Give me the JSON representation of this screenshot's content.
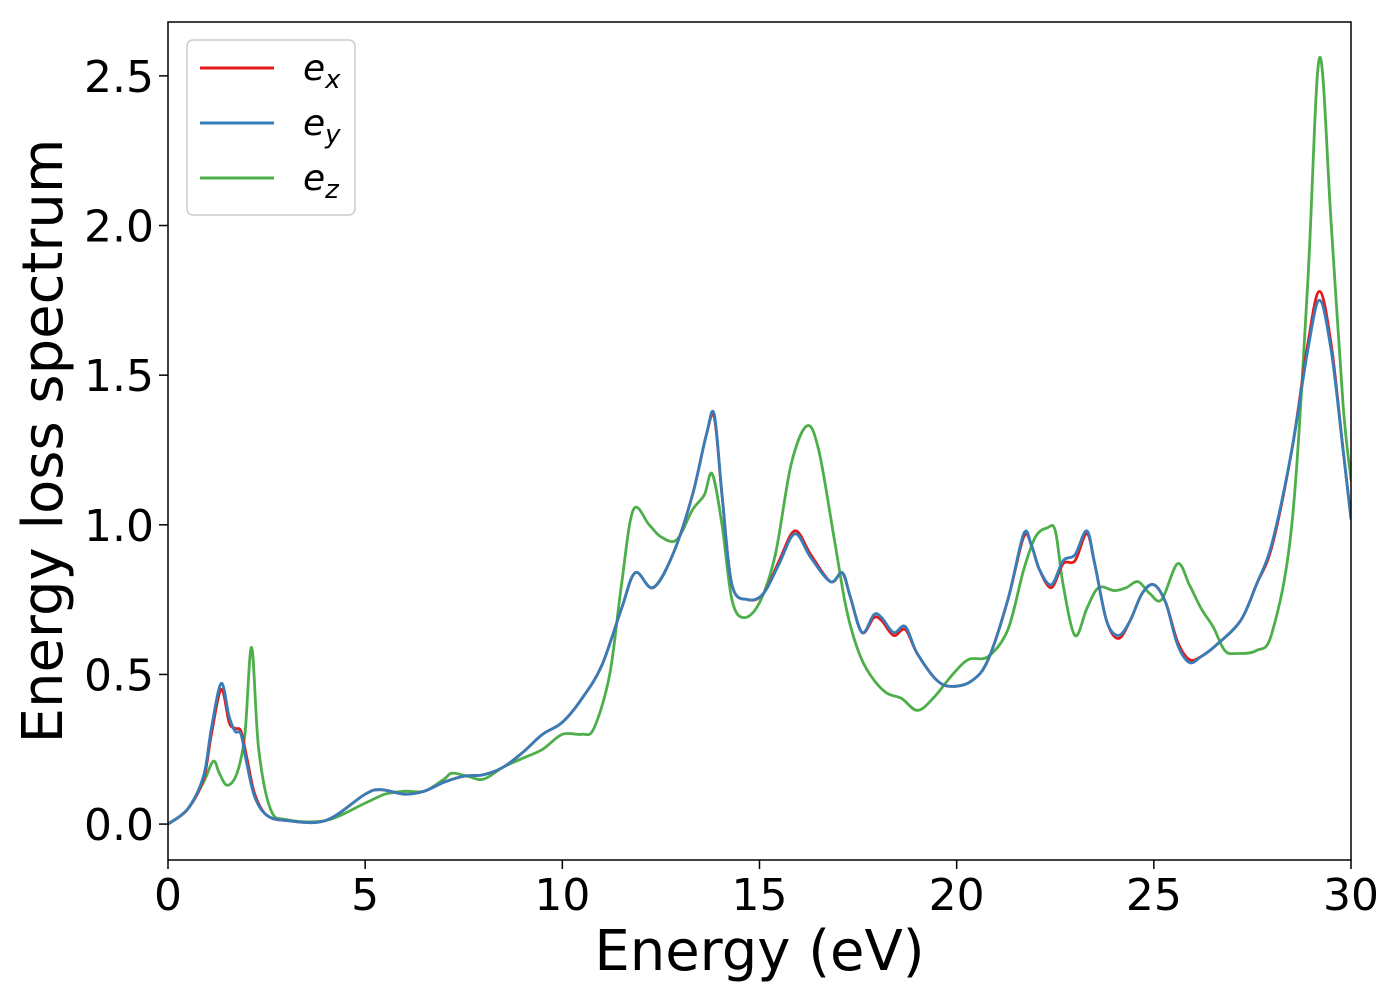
{
  "chart_data": {
    "type": "line",
    "title": "",
    "xlabel": "Energy (eV)",
    "ylabel": "Energy loss spectrum",
    "xlim": [
      0,
      30
    ],
    "ylim": [
      -0.12,
      2.68
    ],
    "xticks": [
      0,
      5,
      10,
      15,
      20,
      25,
      30
    ],
    "yticks": [
      0.0,
      0.5,
      1.0,
      1.5,
      2.0,
      2.5
    ],
    "xtick_labels": [
      "0",
      "5",
      "10",
      "15",
      "20",
      "25",
      "30"
    ],
    "ytick_labels": [
      "0.0",
      "0.5",
      "1.0",
      "1.5",
      "2.0",
      "2.5"
    ],
    "grid": false,
    "legend_position": "top-left",
    "series": [
      {
        "name": "e_x",
        "legend_base": "e",
        "legend_sub": "x",
        "color": "#e41a1c",
        "points": [
          [
            0,
            0.0
          ],
          [
            0.5,
            0.05
          ],
          [
            0.9,
            0.15
          ],
          [
            1.1,
            0.3
          ],
          [
            1.35,
            0.45
          ],
          [
            1.55,
            0.34
          ],
          [
            1.7,
            0.32
          ],
          [
            1.85,
            0.31
          ],
          [
            2.0,
            0.22
          ],
          [
            2.2,
            0.1
          ],
          [
            2.5,
            0.03
          ],
          [
            3.0,
            0.012
          ],
          [
            4.0,
            0.012
          ],
          [
            5.0,
            0.1
          ],
          [
            5.4,
            0.115
          ],
          [
            6.0,
            0.1
          ],
          [
            6.5,
            0.11
          ],
          [
            7.0,
            0.14
          ],
          [
            7.5,
            0.16
          ],
          [
            8.0,
            0.165
          ],
          [
            8.5,
            0.19
          ],
          [
            9.0,
            0.24
          ],
          [
            9.5,
            0.3
          ],
          [
            10.0,
            0.34
          ],
          [
            10.5,
            0.42
          ],
          [
            11.0,
            0.53
          ],
          [
            11.5,
            0.72
          ],
          [
            11.85,
            0.84
          ],
          [
            12.3,
            0.79
          ],
          [
            12.8,
            0.9
          ],
          [
            13.3,
            1.1
          ],
          [
            13.65,
            1.3
          ],
          [
            13.85,
            1.36
          ],
          [
            14.05,
            1.1
          ],
          [
            14.3,
            0.8
          ],
          [
            14.7,
            0.75
          ],
          [
            15.1,
            0.77
          ],
          [
            15.5,
            0.88
          ],
          [
            15.9,
            0.98
          ],
          [
            16.3,
            0.9
          ],
          [
            16.8,
            0.81
          ],
          [
            17.1,
            0.84
          ],
          [
            17.3,
            0.76
          ],
          [
            17.6,
            0.64
          ],
          [
            17.9,
            0.69
          ],
          [
            18.1,
            0.68
          ],
          [
            18.4,
            0.63
          ],
          [
            18.7,
            0.65
          ],
          [
            19.0,
            0.57
          ],
          [
            19.5,
            0.48
          ],
          [
            19.9,
            0.46
          ],
          [
            20.4,
            0.48
          ],
          [
            20.8,
            0.55
          ],
          [
            21.3,
            0.75
          ],
          [
            21.7,
            0.96
          ],
          [
            21.9,
            0.93
          ],
          [
            22.1,
            0.85
          ],
          [
            22.4,
            0.79
          ],
          [
            22.7,
            0.87
          ],
          [
            23.0,
            0.88
          ],
          [
            23.3,
            0.97
          ],
          [
            23.5,
            0.87
          ],
          [
            23.8,
            0.68
          ],
          [
            24.1,
            0.62
          ],
          [
            24.4,
            0.68
          ],
          [
            24.7,
            0.77
          ],
          [
            25.0,
            0.8
          ],
          [
            25.3,
            0.74
          ],
          [
            25.6,
            0.61
          ],
          [
            25.9,
            0.55
          ],
          [
            26.2,
            0.56
          ],
          [
            26.6,
            0.6
          ],
          [
            27.2,
            0.68
          ],
          [
            27.6,
            0.8
          ],
          [
            28.0,
            0.93
          ],
          [
            28.5,
            1.25
          ],
          [
            28.9,
            1.6
          ],
          [
            29.2,
            1.78
          ],
          [
            29.5,
            1.6
          ],
          [
            29.8,
            1.25
          ],
          [
            30.0,
            1.02
          ]
        ]
      },
      {
        "name": "e_y",
        "legend_base": "e",
        "legend_sub": "y",
        "color": "#377eb8",
        "points": [
          [
            0,
            0.0
          ],
          [
            0.5,
            0.05
          ],
          [
            0.9,
            0.16
          ],
          [
            1.1,
            0.32
          ],
          [
            1.35,
            0.47
          ],
          [
            1.55,
            0.36
          ],
          [
            1.7,
            0.31
          ],
          [
            1.85,
            0.3
          ],
          [
            2.0,
            0.2
          ],
          [
            2.2,
            0.09
          ],
          [
            2.5,
            0.03
          ],
          [
            3.0,
            0.012
          ],
          [
            4.0,
            0.012
          ],
          [
            5.0,
            0.1
          ],
          [
            5.4,
            0.115
          ],
          [
            6.0,
            0.1
          ],
          [
            6.5,
            0.11
          ],
          [
            7.0,
            0.14
          ],
          [
            7.5,
            0.16
          ],
          [
            8.0,
            0.165
          ],
          [
            8.5,
            0.19
          ],
          [
            9.0,
            0.24
          ],
          [
            9.5,
            0.3
          ],
          [
            10.0,
            0.34
          ],
          [
            10.5,
            0.42
          ],
          [
            11.0,
            0.53
          ],
          [
            11.5,
            0.72
          ],
          [
            11.85,
            0.84
          ],
          [
            12.3,
            0.79
          ],
          [
            12.8,
            0.9
          ],
          [
            13.3,
            1.1
          ],
          [
            13.65,
            1.3
          ],
          [
            13.85,
            1.37
          ],
          [
            14.05,
            1.1
          ],
          [
            14.3,
            0.8
          ],
          [
            14.7,
            0.75
          ],
          [
            15.1,
            0.77
          ],
          [
            15.5,
            0.87
          ],
          [
            15.9,
            0.97
          ],
          [
            16.3,
            0.89
          ],
          [
            16.8,
            0.81
          ],
          [
            17.1,
            0.84
          ],
          [
            17.3,
            0.76
          ],
          [
            17.6,
            0.64
          ],
          [
            17.9,
            0.7
          ],
          [
            18.1,
            0.69
          ],
          [
            18.4,
            0.64
          ],
          [
            18.7,
            0.66
          ],
          [
            19.0,
            0.57
          ],
          [
            19.5,
            0.48
          ],
          [
            19.9,
            0.46
          ],
          [
            20.4,
            0.48
          ],
          [
            20.8,
            0.55
          ],
          [
            21.3,
            0.75
          ],
          [
            21.7,
            0.97
          ],
          [
            21.9,
            0.93
          ],
          [
            22.1,
            0.85
          ],
          [
            22.4,
            0.8
          ],
          [
            22.7,
            0.88
          ],
          [
            23.0,
            0.9
          ],
          [
            23.3,
            0.98
          ],
          [
            23.5,
            0.87
          ],
          [
            23.8,
            0.68
          ],
          [
            24.1,
            0.63
          ],
          [
            24.4,
            0.68
          ],
          [
            24.7,
            0.77
          ],
          [
            25.0,
            0.8
          ],
          [
            25.3,
            0.74
          ],
          [
            25.6,
            0.6
          ],
          [
            25.9,
            0.54
          ],
          [
            26.2,
            0.56
          ],
          [
            26.6,
            0.6
          ],
          [
            27.2,
            0.68
          ],
          [
            27.6,
            0.8
          ],
          [
            28.0,
            0.94
          ],
          [
            28.5,
            1.25
          ],
          [
            28.9,
            1.58
          ],
          [
            29.2,
            1.75
          ],
          [
            29.5,
            1.58
          ],
          [
            29.8,
            1.25
          ],
          [
            30.0,
            1.02
          ]
        ]
      },
      {
        "name": "e_z",
        "legend_base": "e",
        "legend_sub": "z",
        "color": "#4daf4a",
        "points": [
          [
            0,
            0.0
          ],
          [
            0.5,
            0.05
          ],
          [
            0.9,
            0.14
          ],
          [
            1.15,
            0.21
          ],
          [
            1.3,
            0.17
          ],
          [
            1.5,
            0.13
          ],
          [
            1.75,
            0.17
          ],
          [
            1.95,
            0.3
          ],
          [
            2.12,
            0.59
          ],
          [
            2.3,
            0.25
          ],
          [
            2.6,
            0.05
          ],
          [
            3.0,
            0.015
          ],
          [
            4.0,
            0.012
          ],
          [
            5.0,
            0.07
          ],
          [
            5.5,
            0.1
          ],
          [
            6.0,
            0.11
          ],
          [
            6.5,
            0.11
          ],
          [
            7.0,
            0.15
          ],
          [
            7.2,
            0.17
          ],
          [
            7.6,
            0.16
          ],
          [
            8.0,
            0.15
          ],
          [
            8.5,
            0.19
          ],
          [
            9.0,
            0.22
          ],
          [
            9.5,
            0.25
          ],
          [
            10.0,
            0.3
          ],
          [
            10.5,
            0.3
          ],
          [
            10.8,
            0.32
          ],
          [
            11.2,
            0.5
          ],
          [
            11.5,
            0.8
          ],
          [
            11.8,
            1.05
          ],
          [
            12.2,
            1.0
          ],
          [
            12.5,
            0.96
          ],
          [
            12.9,
            0.95
          ],
          [
            13.3,
            1.05
          ],
          [
            13.6,
            1.1
          ],
          [
            13.8,
            1.17
          ],
          [
            14.05,
            1.0
          ],
          [
            14.3,
            0.75
          ],
          [
            14.6,
            0.69
          ],
          [
            15.0,
            0.74
          ],
          [
            15.4,
            0.9
          ],
          [
            15.8,
            1.2
          ],
          [
            16.2,
            1.33
          ],
          [
            16.5,
            1.25
          ],
          [
            16.9,
            0.95
          ],
          [
            17.2,
            0.72
          ],
          [
            17.5,
            0.58
          ],
          [
            17.8,
            0.5
          ],
          [
            18.2,
            0.44
          ],
          [
            18.6,
            0.42
          ],
          [
            19.0,
            0.38
          ],
          [
            19.4,
            0.42
          ],
          [
            19.9,
            0.5
          ],
          [
            20.3,
            0.55
          ],
          [
            20.8,
            0.56
          ],
          [
            21.3,
            0.65
          ],
          [
            21.7,
            0.85
          ],
          [
            22.0,
            0.96
          ],
          [
            22.3,
            0.99
          ],
          [
            22.5,
            0.98
          ],
          [
            22.7,
            0.8
          ],
          [
            23.0,
            0.63
          ],
          [
            23.3,
            0.72
          ],
          [
            23.6,
            0.79
          ],
          [
            24.0,
            0.78
          ],
          [
            24.3,
            0.79
          ],
          [
            24.6,
            0.81
          ],
          [
            24.9,
            0.77
          ],
          [
            25.2,
            0.75
          ],
          [
            25.6,
            0.87
          ],
          [
            25.9,
            0.8
          ],
          [
            26.2,
            0.72
          ],
          [
            26.5,
            0.66
          ],
          [
            26.8,
            0.58
          ],
          [
            27.1,
            0.57
          ],
          [
            27.6,
            0.58
          ],
          [
            28.0,
            0.64
          ],
          [
            28.5,
            1.0
          ],
          [
            28.9,
            1.8
          ],
          [
            29.2,
            2.56
          ],
          [
            29.5,
            2.0
          ],
          [
            29.8,
            1.4
          ],
          [
            30.0,
            1.15
          ]
        ]
      }
    ]
  }
}
